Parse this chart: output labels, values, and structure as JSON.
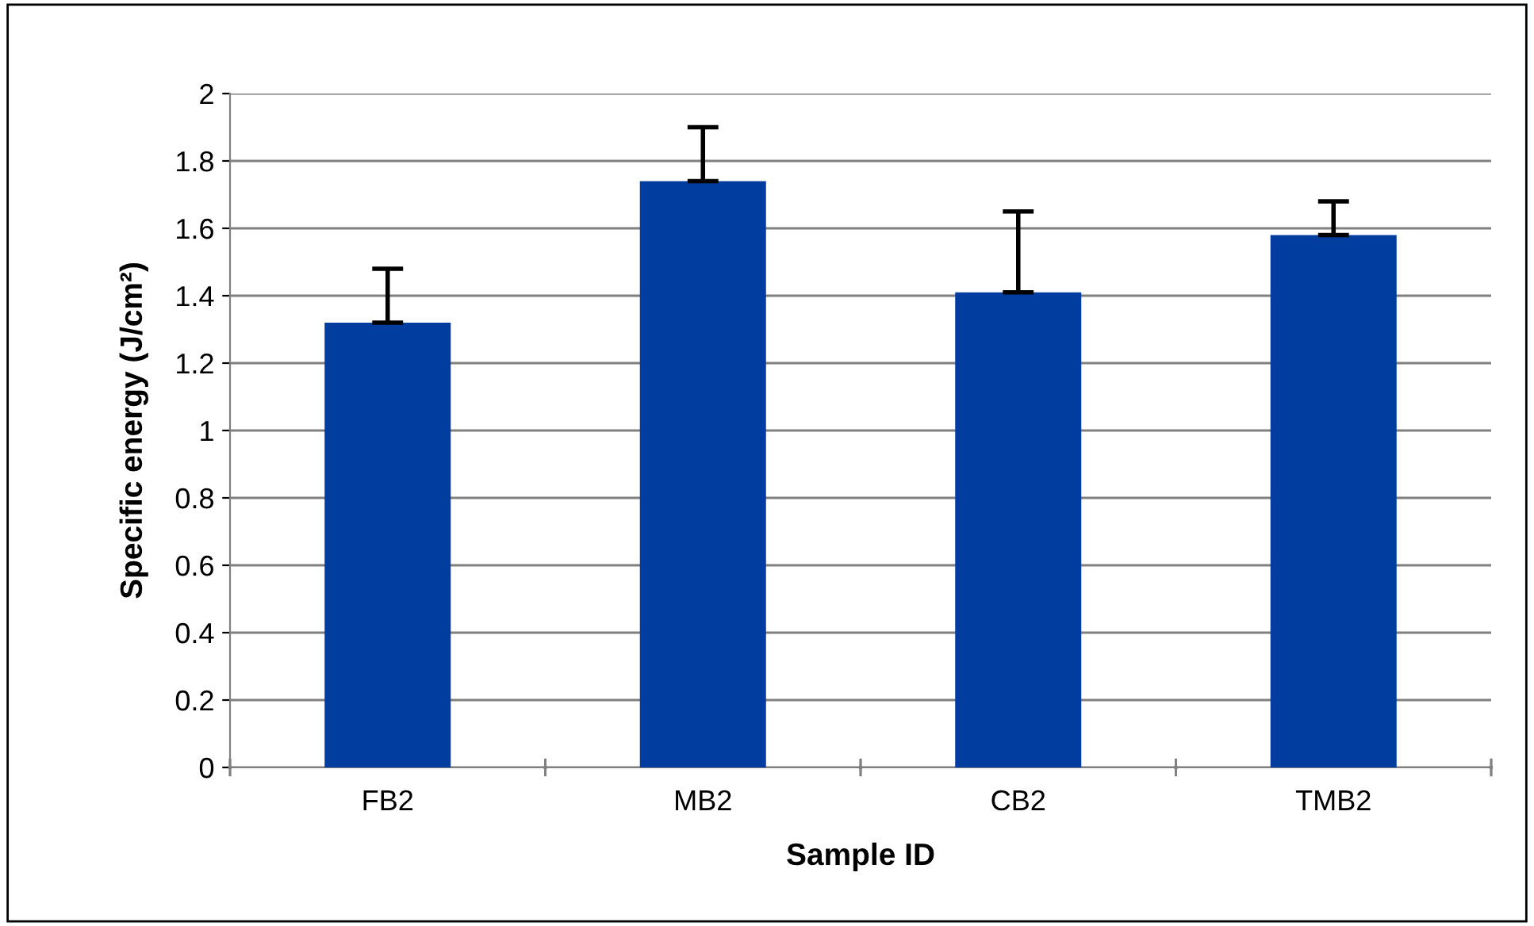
{
  "chart_data": {
    "type": "bar",
    "xlabel": "Sample ID",
    "ylabel": "Specific energy (J/cm²)",
    "categories": [
      "FB2",
      "MB2",
      "CB2",
      "TMB2"
    ],
    "values": [
      1.32,
      1.74,
      1.41,
      1.58
    ],
    "errors": [
      [
        1.32,
        1.48
      ],
      [
        1.74,
        1.9
      ],
      [
        1.41,
        1.65
      ],
      [
        1.58,
        1.68
      ]
    ],
    "color": "#003d9e",
    "ylim": [
      0,
      2
    ],
    "yticks": [
      0,
      0.2,
      0.4,
      0.6,
      0.8,
      1,
      1.2,
      1.4,
      1.6,
      1.8,
      2
    ],
    "grid": "y",
    "legend": false
  }
}
